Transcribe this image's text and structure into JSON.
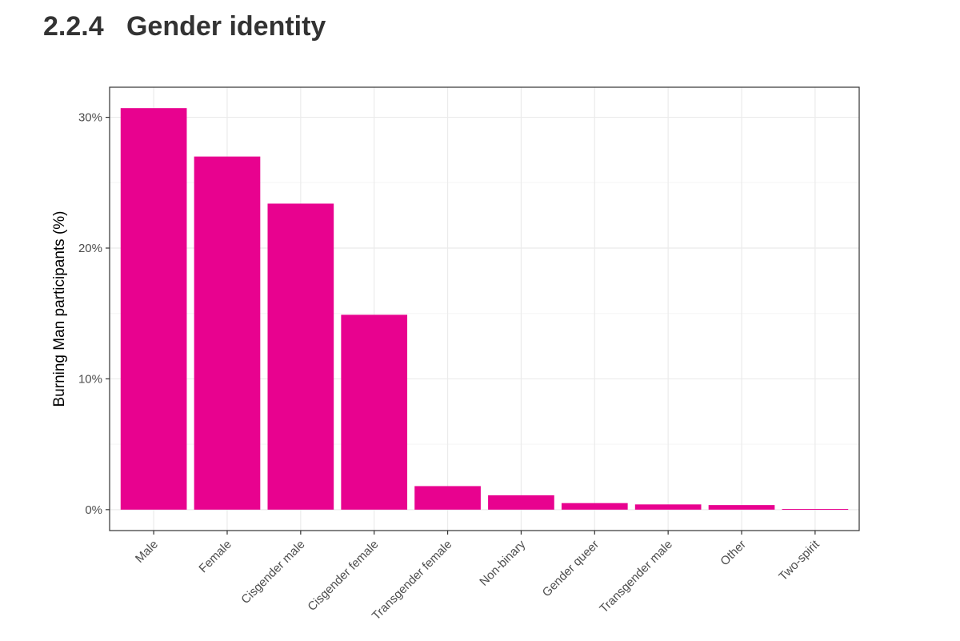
{
  "heading": {
    "number": "2.2.4",
    "title": "Gender identity"
  },
  "colors": {
    "bar": "#e8028f",
    "panel_border": "#333333",
    "grid_major": "#ebebeb",
    "grid_minor": "#f5f5f5"
  },
  "chart_data": {
    "type": "bar",
    "title": "",
    "xlabel": "",
    "ylabel": "Burning Man participants (%)",
    "categories": [
      "Male",
      "Female",
      "Cisgender male",
      "Cisgender female",
      "Transgender female",
      "Non-binary",
      "Gender queer",
      "Transgender male",
      "Other",
      "Two-spirit"
    ],
    "values": [
      30.7,
      27.0,
      23.4,
      14.9,
      1.8,
      1.1,
      0.5,
      0.4,
      0.35,
      0.05
    ],
    "ylim": [
      -1.6,
      32.3
    ],
    "yticks": [
      0,
      10,
      20,
      30
    ],
    "ytick_labels": [
      "0%",
      "10%",
      "20%",
      "30%"
    ],
    "grid": true,
    "legend": "none"
  }
}
